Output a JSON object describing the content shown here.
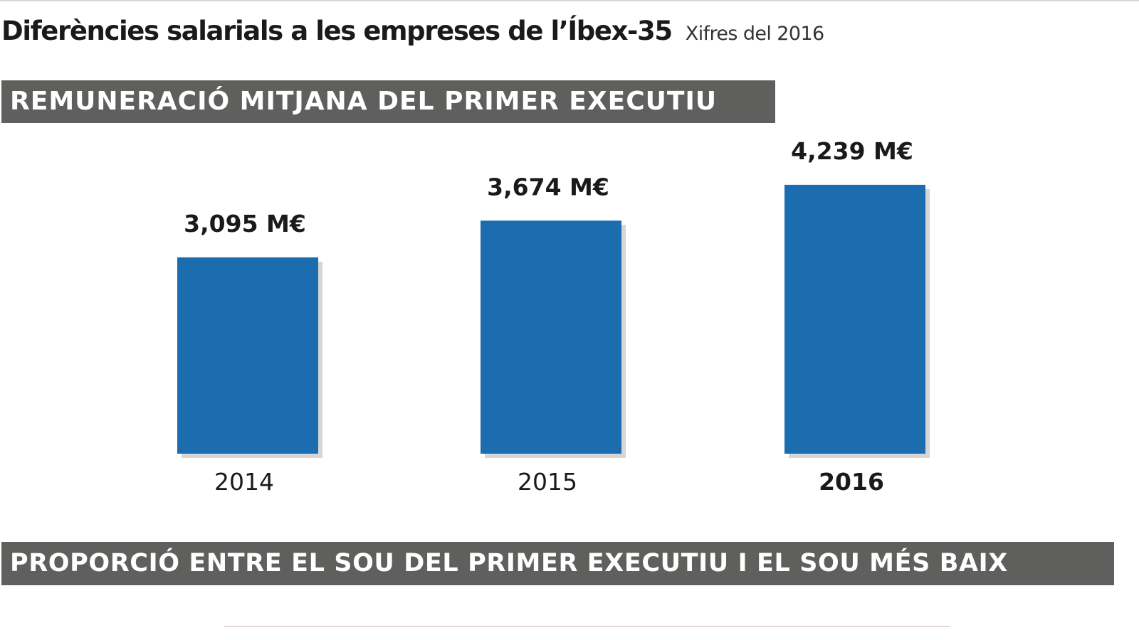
{
  "header": {
    "title": "Diferències salarials a les empreses de l’Íbex-35",
    "subtitle": "Xifres del 2016"
  },
  "banners": {
    "first": "REMUNERACIÓ MITJANA DEL PRIMER EXECUTIU",
    "second": "PROPORCIÓ ENTRE EL SOU DEL PRIMER EXECUTIU I EL SOU MÉS BAIX"
  },
  "colors": {
    "bar": "#1b6db0",
    "bar_shadow": "#d6d6d6",
    "banner_bg": "#5f5f5d",
    "text": "#1a1a1a"
  },
  "chart_data": {
    "type": "bar",
    "title": "REMUNERACIÓ MITJANA DEL PRIMER EXECUTIU",
    "categories": [
      "2014",
      "2015",
      "2016"
    ],
    "values": [
      3.095,
      3.674,
      4.239
    ],
    "value_labels": [
      "3,095 M€",
      "3,674 M€",
      "4,239 M€"
    ],
    "highlighted_category": "2016",
    "unit": "M€",
    "xlabel": "",
    "ylabel": "",
    "grid": false,
    "legend": "none"
  }
}
